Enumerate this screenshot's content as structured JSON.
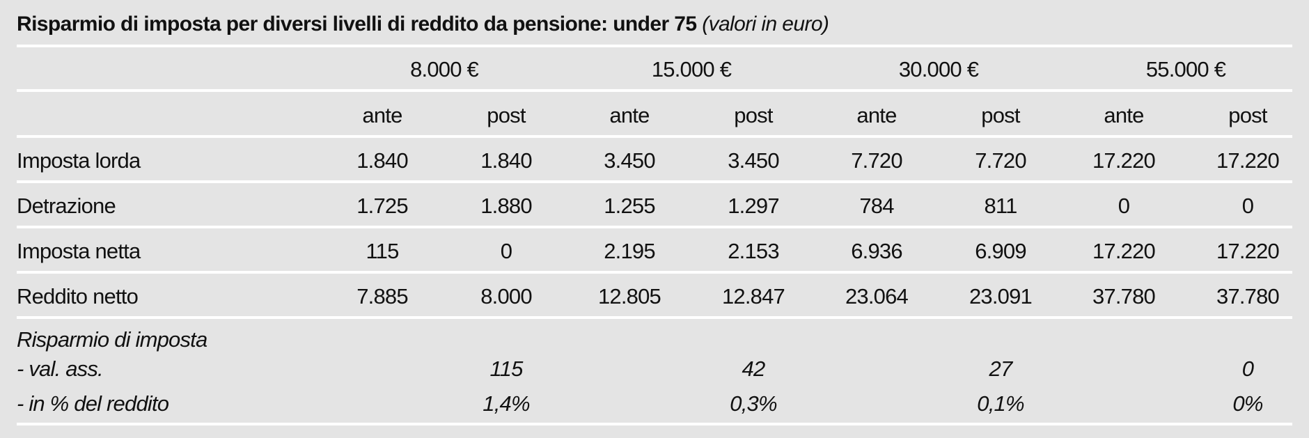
{
  "title": {
    "main": "Risparmio di imposta per diversi livelli di reddito da pensione: under 75",
    "sub": "(valori in euro)"
  },
  "groups": [
    "8.000 €",
    "15.000 €",
    "30.000 €",
    "55.000 €"
  ],
  "subheaders": [
    "ante",
    "post",
    "ante",
    "post",
    "ante",
    "post",
    "ante",
    "post"
  ],
  "rows": [
    {
      "label": "Imposta lorda",
      "values": [
        "1.840",
        "1.840",
        "3.450",
        "3.450",
        "7.720",
        "7.720",
        "17.220",
        "17.220"
      ]
    },
    {
      "label": "Detrazione",
      "values": [
        "1.725",
        "1.880",
        "1.255",
        "1.297",
        "784",
        "811",
        "0",
        "0"
      ]
    },
    {
      "label": "Imposta netta",
      "values": [
        "115",
        "0",
        "2.195",
        "2.153",
        "6.936",
        "6.909",
        "17.220",
        "17.220"
      ]
    },
    {
      "label": "Reddito netto",
      "values": [
        "7.885",
        "8.000",
        "12.805",
        "12.847",
        "23.064",
        "23.091",
        "37.780",
        "37.780"
      ]
    }
  ],
  "savings": {
    "heading": "Risparmio di imposta",
    "abs_label": " - val. ass.",
    "pct_label": " - in % del reddito",
    "abs_values": [
      "115",
      "42",
      "27",
      "0"
    ],
    "pct_values": [
      "1,4%",
      "0,3%",
      "0,1%",
      "0%"
    ]
  }
}
